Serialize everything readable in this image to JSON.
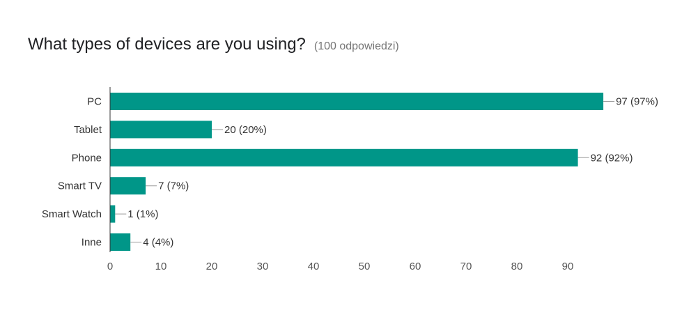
{
  "header": {
    "title": "What types of devices are you using?",
    "response_count": "(100 odpowiedzi)"
  },
  "chart_data": {
    "type": "bar",
    "orientation": "horizontal",
    "categories": [
      "PC",
      "Tablet",
      "Phone",
      "Smart TV",
      "Smart Watch",
      "Inne"
    ],
    "values": [
      97,
      20,
      92,
      7,
      1,
      4
    ],
    "value_labels": [
      "97 (97%)",
      "20 (20%)",
      "92 (92%)",
      "7 (7%)",
      "1 (1%)",
      "4 (4%)"
    ],
    "xlim": [
      0,
      100
    ],
    "xticks": [
      0,
      10,
      20,
      30,
      40,
      50,
      60,
      70,
      80,
      90
    ],
    "bar_color": "#009688",
    "grid": false,
    "legend": "none"
  }
}
